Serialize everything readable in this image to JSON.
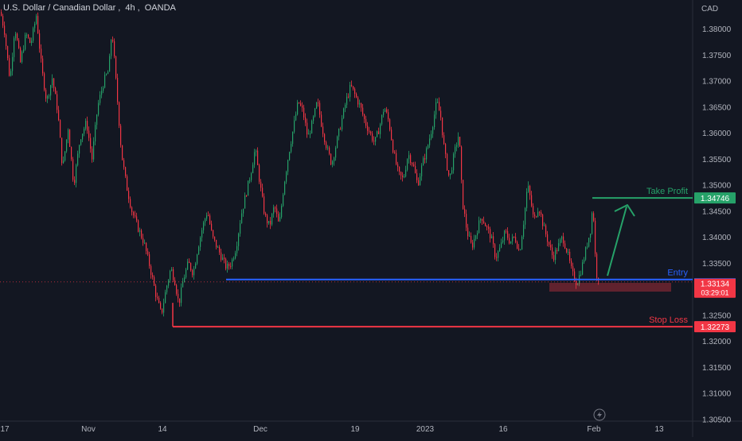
{
  "header": {
    "symbol_name": "U.S. Dollar / Canadian Dollar",
    "interval": "4h",
    "exchange": "OANDA"
  },
  "chart_data": {
    "type": "candlestick",
    "currency_label": "CAD",
    "y_ticks": [
      "1.38000",
      "1.37500",
      "1.37000",
      "1.36500",
      "1.36000",
      "1.35500",
      "1.35000",
      "1.34500",
      "1.34000",
      "1.33500",
      "1.32500",
      "1.32000",
      "1.31500",
      "1.31000",
      "1.30500"
    ],
    "ylim": [
      1.3035,
      1.3837
    ],
    "x_ticks": [
      "17",
      "Nov",
      "14",
      "Dec",
      "19",
      "2023",
      "16",
      "Feb",
      "13"
    ],
    "price_path": [
      [
        0,
        1.3832
      ],
      [
        5,
        1.3795
      ],
      [
        12,
        1.37
      ],
      [
        18,
        1.3805
      ],
      [
        25,
        1.3735
      ],
      [
        32,
        1.379
      ],
      [
        38,
        1.377
      ],
      [
        45,
        1.3825
      ],
      [
        52,
        1.372
      ],
      [
        58,
        1.366
      ],
      [
        65,
        1.3705
      ],
      [
        72,
        1.364
      ],
      [
        78,
        1.353
      ],
      [
        85,
        1.361
      ],
      [
        92,
        1.35
      ],
      [
        100,
        1.359
      ],
      [
        108,
        1.362
      ],
      [
        115,
        1.355
      ],
      [
        122,
        1.365
      ],
      [
        130,
        1.37
      ],
      [
        136,
        1.372
      ],
      [
        140,
        1.38
      ],
      [
        146,
        1.368
      ],
      [
        152,
        1.356
      ],
      [
        158,
        1.35
      ],
      [
        165,
        1.345
      ],
      [
        172,
        1.342
      ],
      [
        180,
        1.339
      ],
      [
        188,
        1.334
      ],
      [
        195,
        1.329
      ],
      [
        202,
        1.325
      ],
      [
        208,
        1.33
      ],
      [
        214,
        1.334
      ],
      [
        219,
        1.3315
      ],
      [
        224,
        1.327
      ],
      [
        230,
        1.332
      ],
      [
        236,
        1.335
      ],
      [
        242,
        1.333
      ],
      [
        248,
        1.338
      ],
      [
        254,
        1.342
      ],
      [
        260,
        1.345
      ],
      [
        266,
        1.34
      ],
      [
        272,
        1.338
      ],
      [
        278,
        1.336
      ],
      [
        284,
        1.334
      ],
      [
        290,
        1.335
      ],
      [
        296,
        1.338
      ],
      [
        302,
        1.344
      ],
      [
        308,
        1.348
      ],
      [
        314,
        1.352
      ],
      [
        320,
        1.357
      ],
      [
        326,
        1.35
      ],
      [
        332,
        1.344
      ],
      [
        338,
        1.342
      ],
      [
        344,
        1.346
      ],
      [
        350,
        1.342
      ],
      [
        356,
        1.35
      ],
      [
        362,
        1.356
      ],
      [
        368,
        1.361
      ],
      [
        374,
        1.366
      ],
      [
        380,
        1.364
      ],
      [
        386,
        1.359
      ],
      [
        392,
        1.362
      ],
      [
        398,
        1.366
      ],
      [
        404,
        1.361
      ],
      [
        410,
        1.357
      ],
      [
        416,
        1.354
      ],
      [
        422,
        1.358
      ],
      [
        428,
        1.362
      ],
      [
        434,
        1.366
      ],
      [
        440,
        1.369
      ],
      [
        446,
        1.367
      ],
      [
        452,
        1.365
      ],
      [
        458,
        1.362
      ],
      [
        464,
        1.36
      ],
      [
        470,
        1.358
      ],
      [
        476,
        1.361
      ],
      [
        482,
        1.365
      ],
      [
        488,
        1.362
      ],
      [
        494,
        1.356
      ],
      [
        500,
        1.352
      ],
      [
        506,
        1.351
      ],
      [
        512,
        1.356
      ],
      [
        518,
        1.354
      ],
      [
        524,
        1.35
      ],
      [
        530,
        1.354
      ],
      [
        536,
        1.357
      ],
      [
        542,
        1.361
      ],
      [
        548,
        1.366
      ],
      [
        553,
        1.363
      ],
      [
        558,
        1.356
      ],
      [
        564,
        1.351
      ],
      [
        570,
        1.356
      ],
      [
        576,
        1.36
      ],
      [
        580,
        1.347
      ],
      [
        586,
        1.341
      ],
      [
        592,
        1.338
      ],
      [
        598,
        1.341
      ],
      [
        604,
        1.344
      ],
      [
        610,
        1.342
      ],
      [
        616,
        1.34
      ],
      [
        622,
        1.336
      ],
      [
        628,
        1.338
      ],
      [
        634,
        1.341
      ],
      [
        640,
        1.339
      ],
      [
        646,
        1.34
      ],
      [
        652,
        1.337
      ],
      [
        658,
        1.344
      ],
      [
        662,
        1.35
      ],
      [
        666,
        1.347
      ],
      [
        670,
        1.343
      ],
      [
        676,
        1.346
      ],
      [
        682,
        1.342
      ],
      [
        688,
        1.339
      ],
      [
        694,
        1.336
      ],
      [
        700,
        1.338
      ],
      [
        706,
        1.34
      ],
      [
        712,
        1.337
      ],
      [
        718,
        1.333
      ],
      [
        724,
        1.331
      ],
      [
        730,
        1.334
      ],
      [
        736,
        1.338
      ],
      [
        742,
        1.342
      ],
      [
        744,
        1.347
      ],
      [
        746,
        1.34
      ],
      [
        748,
        1.333
      ],
      [
        752,
        1.332
      ]
    ],
    "horizontal_levels": [
      {
        "name": "Take Profit",
        "price": 1.34746,
        "price_label": "1.34746",
        "color": "#26a269"
      },
      {
        "name": "Entry",
        "price": 1.3318,
        "price_label": "",
        "color": "#2962ff"
      },
      {
        "name": "Stop Loss",
        "price": 1.32273,
        "price_label": "1.32273",
        "color": "#f23645"
      }
    ],
    "current_price": {
      "value": "1.33134",
      "countdown": "03:29:01",
      "color": "#f23645"
    },
    "arrow_color": "#26a269",
    "entry_zone_color": "#f23645",
    "up_color": "#26a269",
    "down_color": "#f23645"
  }
}
